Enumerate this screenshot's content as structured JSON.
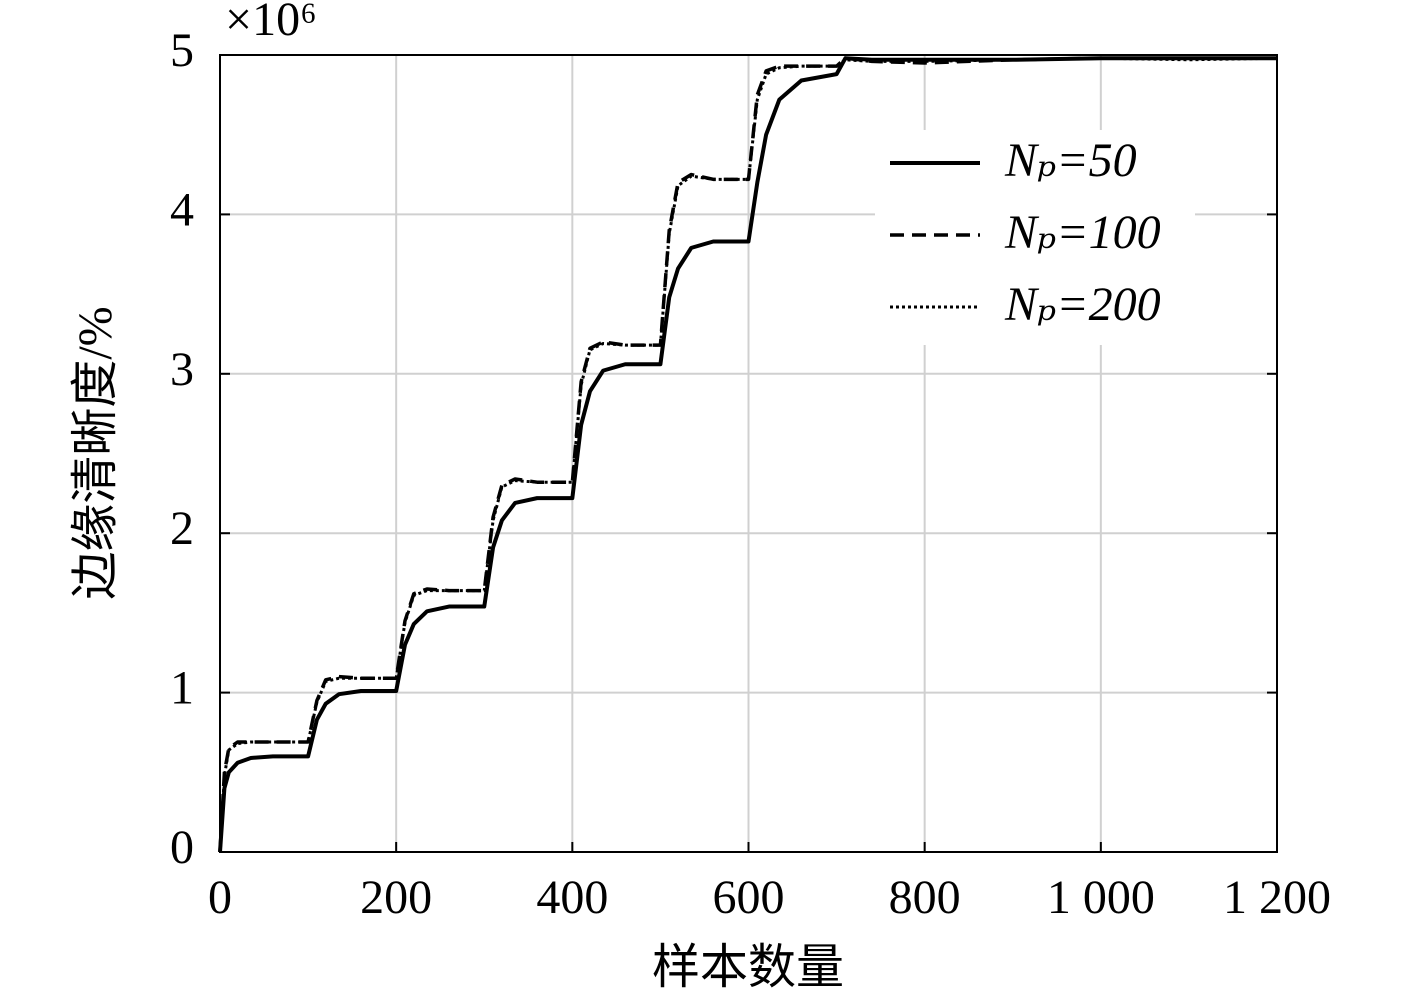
{
  "chart_data": {
    "type": "line",
    "x_label": "样本数量",
    "y_label": "边缘清晰度/%",
    "y_scale_label": "×10⁶",
    "xlim": [
      0,
      1200
    ],
    "ylim": [
      0,
      5
    ],
    "xticks": [
      0,
      200,
      400,
      600,
      800,
      {
        "value": 1000,
        "label": "1 000"
      },
      {
        "value": 1200,
        "label": "1 200"
      }
    ],
    "yticks": [
      0,
      1,
      2,
      3,
      4,
      5
    ],
    "grid": true,
    "legend": "upper right",
    "x": [
      0,
      5,
      10,
      20,
      35,
      60,
      100,
      110,
      120,
      135,
      160,
      200,
      210,
      220,
      235,
      260,
      300,
      310,
      320,
      335,
      360,
      400,
      410,
      420,
      435,
      460,
      500,
      510,
      520,
      535,
      560,
      600,
      610,
      620,
      635,
      660,
      700,
      710,
      740,
      800,
      900,
      1000,
      1100,
      1200
    ],
    "series": [
      {
        "name": "Nₚ=50",
        "color": "#000000",
        "style": "solid",
        "values": [
          0,
          0.4,
          0.5,
          0.56,
          0.59,
          0.6,
          0.6,
          0.83,
          0.93,
          0.99,
          1.01,
          1.01,
          1.3,
          1.43,
          1.51,
          1.54,
          1.54,
          1.91,
          2.08,
          2.19,
          2.22,
          2.22,
          2.68,
          2.89,
          3.02,
          3.06,
          3.06,
          3.48,
          3.66,
          3.79,
          3.83,
          3.83,
          4.2,
          4.5,
          4.72,
          4.84,
          4.88,
          4.98,
          4.97,
          4.97,
          4.97,
          4.98,
          4.98,
          4.98
        ]
      },
      {
        "name": "Nₚ=100",
        "color": "#000000",
        "style": "dashed",
        "values": [
          0,
          0.5,
          0.65,
          0.69,
          0.69,
          0.69,
          0.69,
          0.95,
          1.08,
          1.1,
          1.09,
          1.09,
          1.45,
          1.62,
          1.65,
          1.64,
          1.64,
          2.1,
          2.3,
          2.34,
          2.32,
          2.32,
          2.95,
          3.16,
          3.2,
          3.18,
          3.18,
          3.9,
          4.2,
          4.25,
          4.22,
          4.22,
          4.75,
          4.9,
          4.93,
          4.93,
          4.93,
          4.98,
          4.96,
          4.95,
          4.97,
          4.98,
          4.98,
          4.98
        ]
      },
      {
        "name": "Nₚ=200",
        "color": "#000000",
        "style": "dotted",
        "values": [
          0,
          0.48,
          0.64,
          0.68,
          0.69,
          0.69,
          0.69,
          0.94,
          1.07,
          1.09,
          1.09,
          1.09,
          1.44,
          1.61,
          1.64,
          1.64,
          1.64,
          2.08,
          2.29,
          2.33,
          2.32,
          2.32,
          2.93,
          3.15,
          3.19,
          3.18,
          3.18,
          3.88,
          4.18,
          4.24,
          4.22,
          4.22,
          4.72,
          4.88,
          4.92,
          4.93,
          4.93,
          4.97,
          4.96,
          4.96,
          4.97,
          4.98,
          4.97,
          4.98
        ]
      }
    ]
  }
}
